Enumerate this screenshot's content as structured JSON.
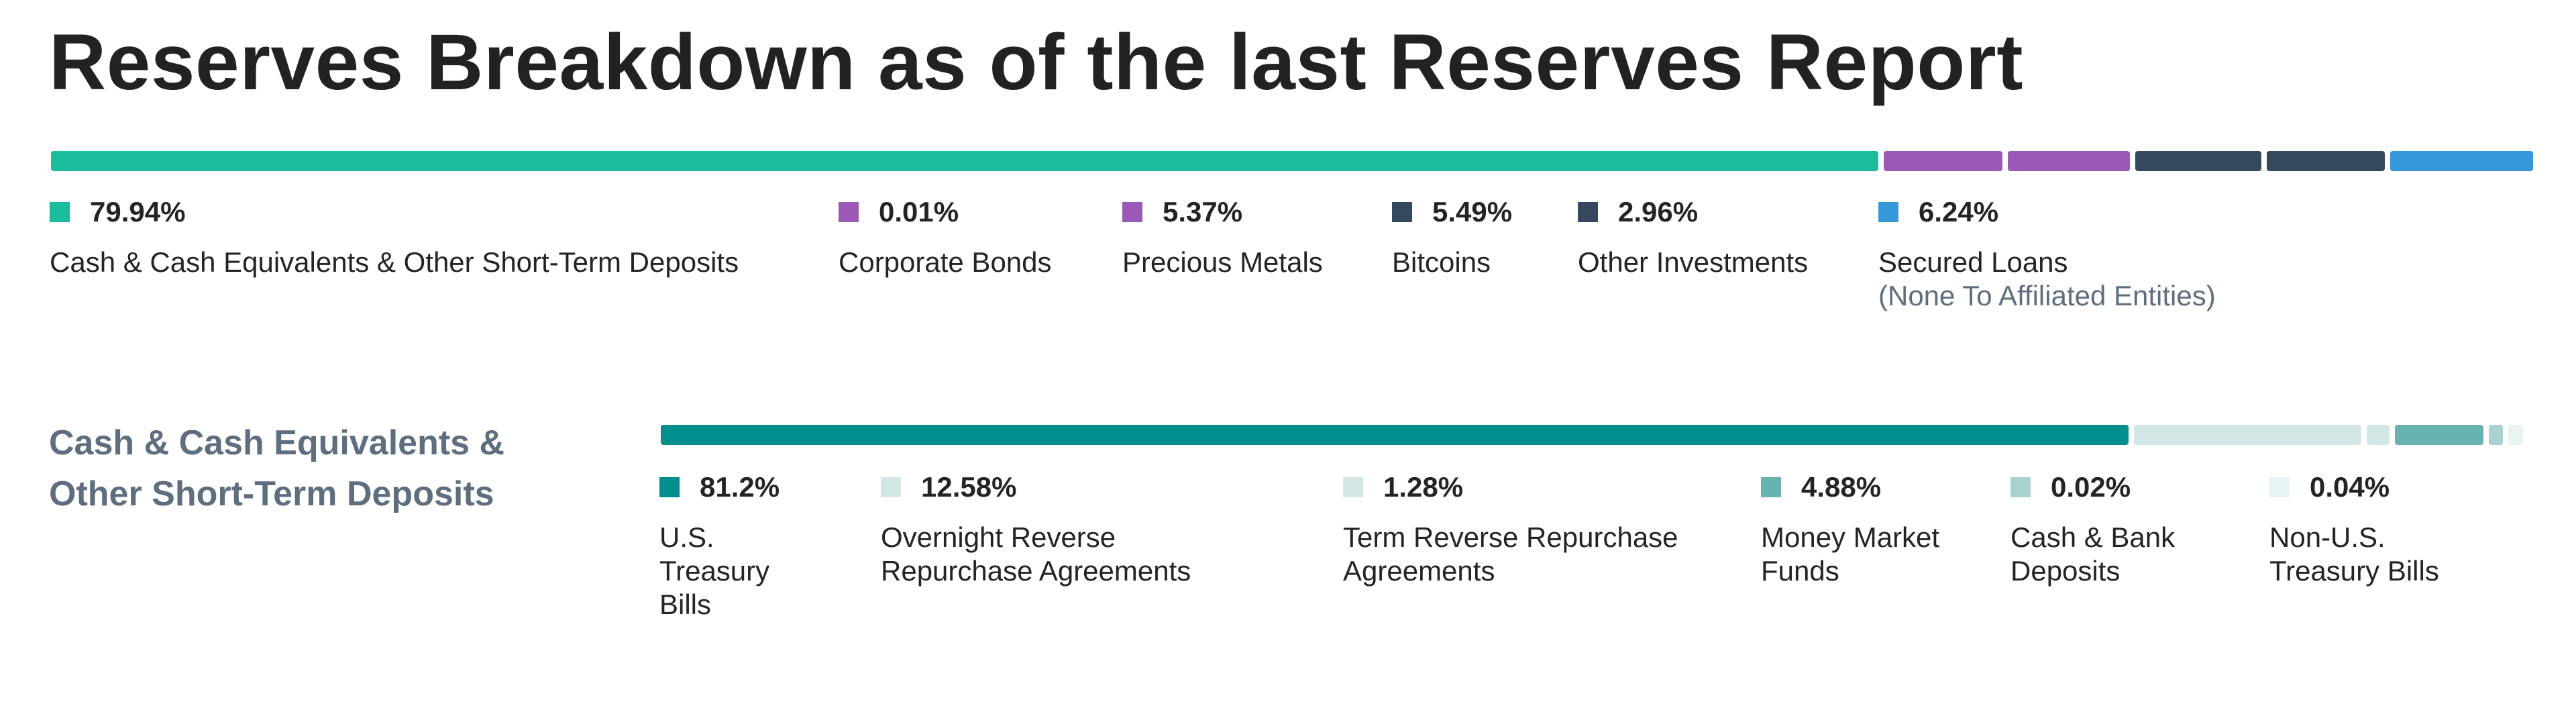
{
  "title": "Reserves Breakdown as of the last Reserves Report",
  "section_label": "Cash & Cash Equivalents & Other Short-Term Deposits",
  "chart_data": [
    {
      "type": "bar",
      "orientation": "horizontal-stacked",
      "title": "Reserves Breakdown as of the last Reserves Report",
      "categories": [
        "Cash & Cash Equivalents & Other Short-Term Deposits",
        "Corporate Bonds",
        "Precious Metals",
        "Bitcoins",
        "Other Investments",
        "Secured Loans"
      ],
      "values": [
        79.94,
        0.01,
        5.37,
        5.49,
        2.96,
        6.24
      ],
      "value_labels": [
        "79.94%",
        "0.01%",
        "5.37%",
        "5.49%",
        "2.96%",
        "6.24%"
      ],
      "sublabels": [
        "",
        "",
        "",
        "",
        "",
        "(None To Affiliated Entities)"
      ],
      "colors": [
        "#1abc9c",
        "#9b59b6",
        "#9b59b6",
        "#34495e",
        "#34495e",
        "#3498db"
      ],
      "unit": "%"
    },
    {
      "type": "bar",
      "orientation": "horizontal-stacked",
      "title": "Cash & Cash Equivalents & Other Short-Term Deposits",
      "categories": [
        "U.S. Treasury Bills",
        "Overnight Reverse Repurchase Agreements",
        "Term Reverse Repurchase Agreements",
        "Money Market Funds",
        "Cash & Bank Deposits",
        "Non-U.S. Treasury Bills"
      ],
      "values": [
        81.2,
        12.58,
        1.28,
        4.88,
        0.02,
        0.04
      ],
      "value_labels": [
        "81.2%",
        "12.58%",
        "1.28%",
        "4.88%",
        "0.02%",
        "0.04%"
      ],
      "sublabels": [
        "",
        "",
        "",
        "",
        "",
        ""
      ],
      "colors": [
        "#008e8e",
        "#d4e7e7",
        "#d4e7e7",
        "#66b3b0",
        "#a8d1cf",
        "#e8f3f3"
      ],
      "unit": "%"
    }
  ]
}
